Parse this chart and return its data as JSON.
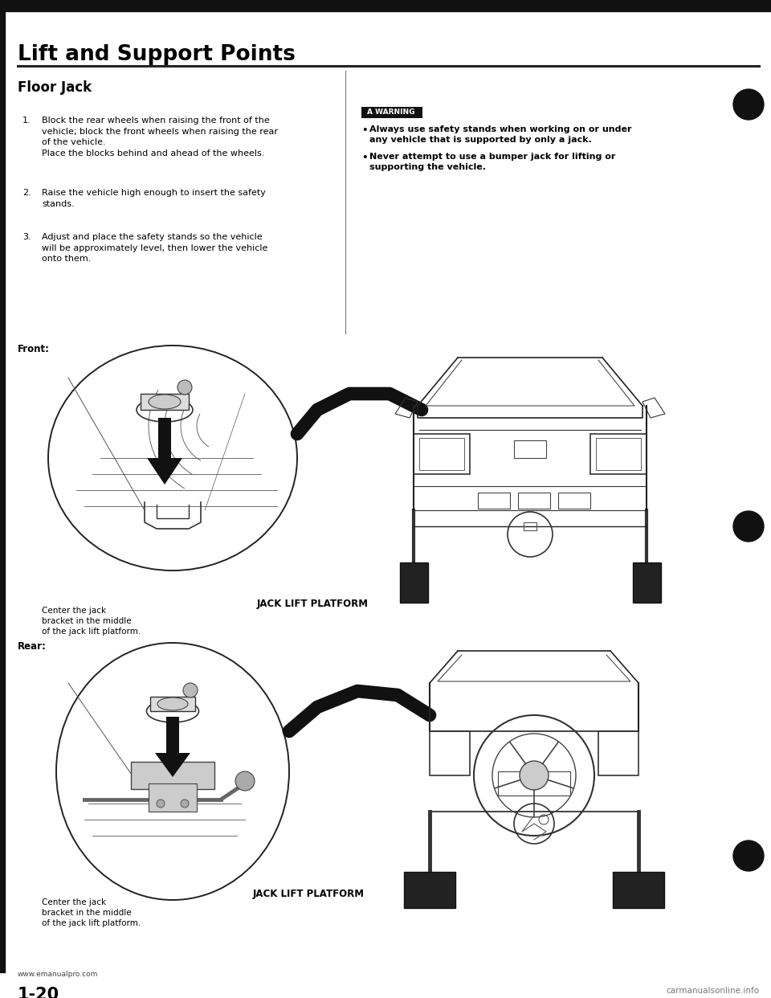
{
  "title": "Lift and Support Points",
  "section_title": "Floor Jack",
  "page_number": "1-20",
  "website_left": "www.emanualpro.com",
  "website_right": "carmanualsonline.info",
  "bg_color": "#ffffff",
  "warning_label": "A WARNING",
  "items_left": [
    {
      "num": "1.",
      "text": "Block the rear wheels when raising the front of the\nvehicle; block the front wheels when raising the rear\nof the vehicle.\nPlace the blocks behind and ahead of the wheels."
    },
    {
      "num": "2.",
      "text": "Raise the vehicle high enough to insert the safety\nstands."
    },
    {
      "num": "3.",
      "text": "Adjust and place the safety stands so the vehicle\nwill be approximately level, then lower the vehicle\nonto them."
    }
  ],
  "warning_bullets": [
    "Always use safety stands when working on or under\nany vehicle that is supported by only a jack.",
    "Never attempt to use a bumper jack for lifting or\nsupporting the vehicle."
  ],
  "front_label": "Front:",
  "rear_label": "Rear:",
  "jack_label": "JACK LIFT PLATFORM",
  "caption_text": "Center the jack\nbracket in the middle\nof the jack lift platform."
}
